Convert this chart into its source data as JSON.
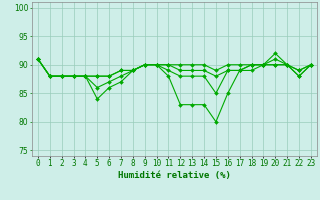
{
  "x": [
    0,
    1,
    2,
    3,
    4,
    5,
    6,
    7,
    8,
    9,
    10,
    11,
    12,
    13,
    14,
    15,
    16,
    17,
    18,
    19,
    20,
    21,
    22,
    23
  ],
  "line1": [
    91,
    88,
    88,
    88,
    88,
    84,
    86,
    87,
    89,
    90,
    90,
    88,
    83,
    83,
    83,
    80,
    85,
    89,
    89,
    90,
    92,
    90,
    88,
    90
  ],
  "line2": [
    91,
    88,
    88,
    88,
    88,
    86,
    87,
    88,
    89,
    90,
    90,
    89,
    88,
    88,
    88,
    85,
    89,
    89,
    90,
    90,
    90,
    90,
    88,
    90
  ],
  "line3": [
    91,
    88,
    88,
    88,
    88,
    88,
    88,
    89,
    89,
    90,
    90,
    90,
    89,
    89,
    89,
    88,
    89,
    89,
    90,
    90,
    90,
    90,
    89,
    90
  ],
  "line4": [
    91,
    88,
    88,
    88,
    88,
    88,
    88,
    89,
    89,
    90,
    90,
    90,
    90,
    90,
    90,
    89,
    90,
    90,
    90,
    90,
    91,
    90,
    89,
    90
  ],
  "line_color": "#00aa00",
  "marker": "D",
  "markersize": 2,
  "linewidth": 0.8,
  "bg_color": "#ceeee8",
  "grid_color": "#99ccbb",
  "xlabel": "Humidité relative (%)",
  "xlabel_color": "#007700",
  "xlabel_fontsize": 6.5,
  "tick_color": "#007700",
  "tick_fontsize": 5.5,
  "ylim": [
    74,
    101
  ],
  "yticks": [
    75,
    80,
    85,
    90,
    95,
    100
  ],
  "xlim": [
    -0.5,
    23.5
  ]
}
